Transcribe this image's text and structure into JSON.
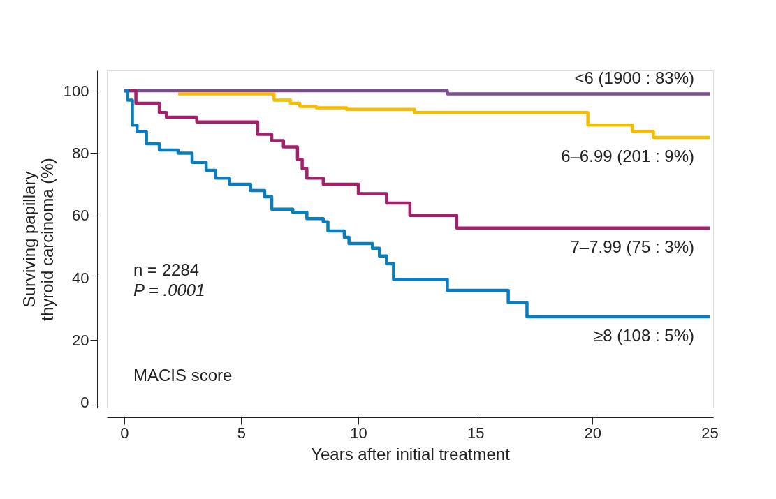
{
  "chart_data": {
    "type": "step",
    "xlabel": "Years after initial treatment",
    "ylabel": "Surviving papillary thyroid carcinoma (%)",
    "xlim": [
      -0.74,
      25.15
    ],
    "ylim": [
      -1.6,
      106.5
    ],
    "xticks": [
      0,
      5,
      10,
      15,
      20,
      25
    ],
    "yticks": [
      0,
      20,
      40,
      60,
      80,
      100
    ],
    "grid": false,
    "line_style": "solid",
    "marker": "none",
    "annotations": [
      "n = 2284",
      "P = .0001",
      "MACIS score"
    ],
    "series": [
      {
        "name": "<6 (1900 : 83%)",
        "color": "#7b4f8e",
        "x": [
          0,
          13.8,
          25
        ],
        "values": [
          100,
          99,
          99
        ]
      },
      {
        "name": "6–6.99 (201 : 9%)",
        "color": "#f5bc00",
        "x": [
          2.3,
          6.4,
          7.1,
          7.5,
          8.2,
          9.5,
          12.4,
          19.8,
          21.7,
          22.6,
          25
        ],
        "values": [
          99,
          97,
          96,
          95,
          94.5,
          94,
          93,
          89,
          87,
          85,
          85
        ]
      },
      {
        "name": "7–7.99 (75 : 3%)",
        "color": "#a3216b",
        "x": [
          0,
          0.5,
          1.5,
          1.8,
          3.1,
          5.7,
          6.3,
          6.8,
          7.4,
          7.6,
          7.8,
          8.5,
          10.0,
          11.2,
          12.2,
          14.2,
          25
        ],
        "values": [
          100,
          96,
          93,
          91.5,
          90,
          86,
          84,
          82,
          78,
          75,
          72,
          70,
          67,
          64,
          60,
          56,
          56
        ]
      },
      {
        "name": "≥8 (108 : 5%)",
        "color": "#0a7dbf",
        "x": [
          0,
          0.15,
          0.35,
          0.55,
          0.95,
          1.5,
          2.3,
          2.9,
          3.5,
          3.9,
          4.5,
          5.4,
          6.0,
          6.3,
          7.2,
          7.8,
          8.5,
          8.7,
          9.4,
          9.6,
          10.6,
          10.9,
          11.2,
          11.5,
          13.8,
          16.4,
          17.2,
          25
        ],
        "values": [
          100,
          97,
          89,
          87,
          83,
          81,
          80,
          77,
          74.5,
          72,
          70,
          68,
          66,
          62,
          61,
          59,
          58,
          55,
          53,
          51,
          49.5,
          47,
          44.5,
          39.5,
          36,
          32,
          27.5,
          27.5
        ]
      }
    ]
  }
}
